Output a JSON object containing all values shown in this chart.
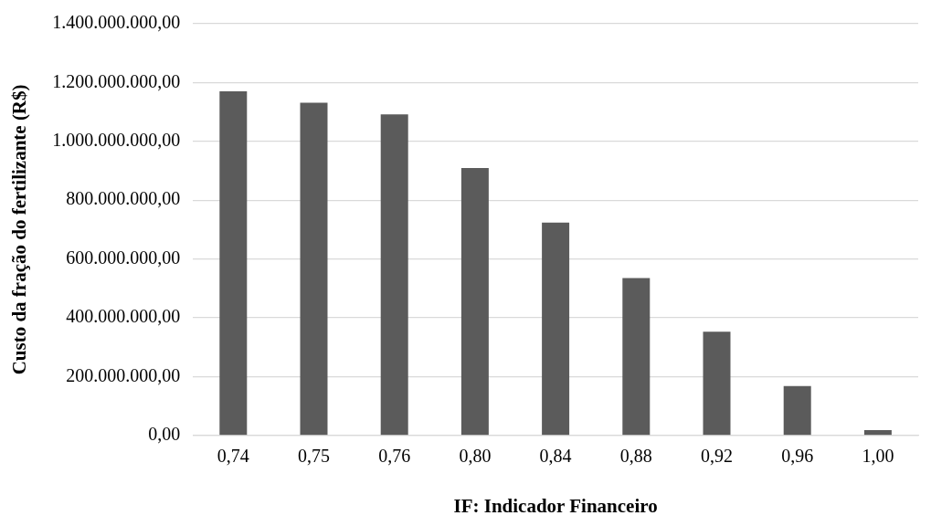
{
  "chart_data": {
    "type": "bar",
    "xlabel": "IF: Indicador Financeiro",
    "ylabel": "Custo da fração do fertilizante (R$)",
    "categories": [
      "0,74",
      "0,75",
      "0,76",
      "0,80",
      "0,84",
      "0,88",
      "0,92",
      "0,96",
      "1,00"
    ],
    "values": [
      1170000000,
      1131000000,
      1092000000,
      909000000,
      724000000,
      535000000,
      353000000,
      168000000,
      18000000
    ],
    "color": "#5b5b5b",
    "ylim": [
      0,
      1400000000
    ],
    "yticks": [
      {
        "value": 0,
        "label": "0,00"
      },
      {
        "value": 200000000,
        "label": "200.000.000,00"
      },
      {
        "value": 400000000,
        "label": "400.000.000,00"
      },
      {
        "value": 600000000,
        "label": "600.000.000,00"
      },
      {
        "value": 800000000,
        "label": "800.000.000,00"
      },
      {
        "value": 1000000000,
        "label": "1.000.000.000,00"
      },
      {
        "value": 1200000000,
        "label": "1.200.000.000,00"
      },
      {
        "value": 1400000000,
        "label": "1.400.000.000,00"
      }
    ],
    "grid": "y"
  }
}
